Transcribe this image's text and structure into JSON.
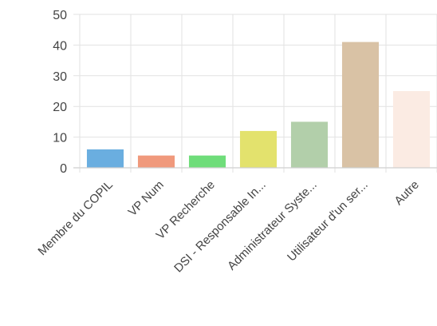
{
  "chart_data": {
    "type": "bar",
    "categories": [
      "Membre du COPIL",
      "VP Num",
      "VP Recherche",
      "DSI - Responsable In...",
      "Administrateur Syste...",
      "Utilisateur d'un ser...",
      "Autre"
    ],
    "values": [
      6,
      4,
      4,
      12,
      15,
      41,
      25
    ],
    "colors": [
      "#6aaee0",
      "#f0997c",
      "#6fdd7a",
      "#e3e26d",
      "#b2cfaa",
      "#d9c2a5",
      "#fbebe3"
    ],
    "yticks": [
      0,
      10,
      20,
      30,
      40,
      50
    ],
    "ylim": [
      0,
      50
    ],
    "grid": true,
    "legend": "none"
  }
}
